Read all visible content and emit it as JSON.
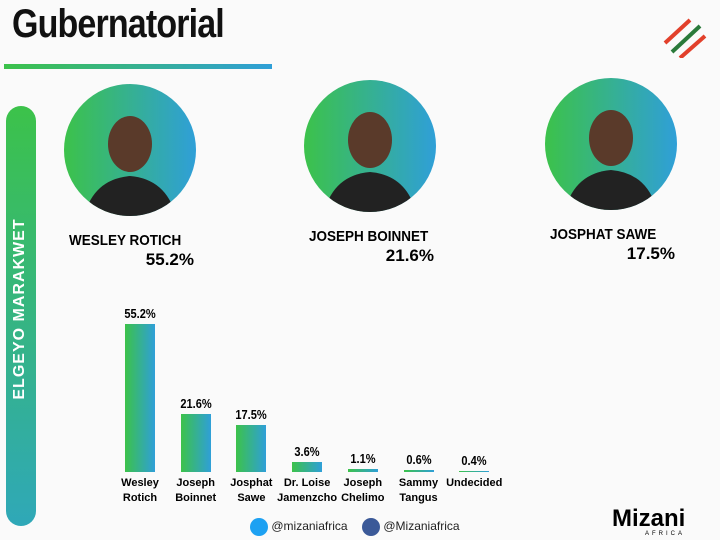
{
  "chart_data": {
    "type": "bar",
    "title": "Gubernatorial",
    "region": "ELGEYO MARAKWET",
    "featured": [
      {
        "name": "WESLEY ROTICH",
        "share": "55.2%"
      },
      {
        "name": "JOSEPH BOINNET",
        "share": "21.6%"
      },
      {
        "name": "JOSPHAT SAWE",
        "share": "17.5%"
      }
    ],
    "categories": [
      "Wesley\nRotich",
      "Joseph\nBoinnet",
      "Josphat\nSawe",
      "Dr. Loise\nJamenzcho",
      "Joseph\nChelimo",
      "Sammy\nTangus",
      "Undecided"
    ],
    "values": [
      55.2,
      21.6,
      17.5,
      3.6,
      1.1,
      0.6,
      0.4
    ],
    "value_labels": [
      "55.2%",
      "21.6%",
      "17.5%",
      "3.6%",
      "1.1%",
      "0.6%",
      "0.4%"
    ],
    "colors": [
      "#3cc24a",
      "#2f9fd8"
    ],
    "footer": {
      "twitter": "@mizaniafrica",
      "facebook": "@Mizaniafrica",
      "brand": "Mizani",
      "brand_sub": "AFRICA"
    }
  }
}
